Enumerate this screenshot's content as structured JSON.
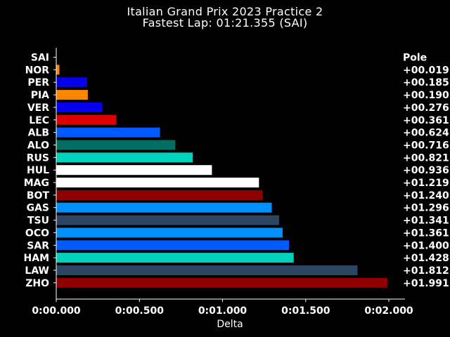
{
  "chart_data": {
    "type": "bar",
    "orientation": "horizontal",
    "title": "Italian Grand Prix 2023 Practice 2",
    "subtitle": "Fastest Lap: 01:21.355 (SAI)",
    "xlabel": "Delta",
    "ylabel": "",
    "xlim": [
      0,
      0.002
    ],
    "x_ticks": [
      0,
      0.0005,
      0.001,
      0.0015,
      0.002
    ],
    "x_tick_labels": [
      "0:00.000",
      "0:00.500",
      "0:01.000",
      "0:01.500",
      "0:02.000"
    ],
    "grid": false,
    "background": "#000000",
    "categories": [
      "SAI",
      "NOR",
      "PER",
      "PIA",
      "VER",
      "LEC",
      "ALB",
      "ALO",
      "RUS",
      "HUL",
      "MAG",
      "BOT",
      "GAS",
      "TSU",
      "OCO",
      "SAR",
      "HAM",
      "LAW",
      "ZHO"
    ],
    "values": [
      0.0,
      1.9e-05,
      0.000185,
      0.00019,
      0.000276,
      0.000361,
      0.000624,
      0.000716,
      0.000821,
      0.000936,
      0.001219,
      0.00124,
      0.001296,
      0.001341,
      0.001361,
      0.0014,
      0.001428,
      0.001812,
      0.001991
    ],
    "delta_labels": [
      "Pole",
      "+00.019",
      "+00.185",
      "+00.190",
      "+00.276",
      "+00.361",
      "+00.624",
      "+00.716",
      "+00.821",
      "+00.936",
      "+01.219",
      "+01.240",
      "+01.296",
      "+01.341",
      "+01.361",
      "+01.400",
      "+01.428",
      "+01.812",
      "+01.991"
    ],
    "colors": [
      "#dc0000",
      "#ff8700",
      "#0600ef",
      "#ff8700",
      "#0600ef",
      "#dc0000",
      "#005aff",
      "#006f62",
      "#00d2be",
      "#ffffff",
      "#ffffff",
      "#900000",
      "#0090ff",
      "#2b4562",
      "#0090ff",
      "#005aff",
      "#00d2be",
      "#2b4562",
      "#900000"
    ]
  }
}
